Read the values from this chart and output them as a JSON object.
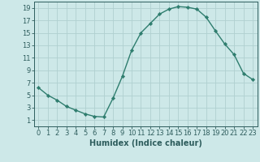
{
  "x": [
    0,
    1,
    2,
    3,
    4,
    5,
    6,
    7,
    8,
    9,
    10,
    11,
    12,
    13,
    14,
    15,
    16,
    17,
    18,
    19,
    20,
    21,
    22,
    23
  ],
  "y": [
    6.2,
    5.0,
    4.2,
    3.2,
    2.6,
    2.0,
    1.6,
    1.5,
    4.5,
    8.0,
    12.2,
    15.0,
    16.5,
    18.0,
    18.8,
    19.2,
    19.1,
    18.8,
    17.5,
    15.3,
    13.2,
    11.5,
    8.5,
    7.5
  ],
  "xlabel": "Humidex (Indice chaleur)",
  "line_color": "#2e7d6e",
  "marker_color": "#2e7d6e",
  "bg_color": "#cde8e8",
  "grid_color": "#b0d0d0",
  "xlim": [
    -0.5,
    23.5
  ],
  "ylim": [
    0,
    20
  ],
  "xticks": [
    0,
    1,
    2,
    3,
    4,
    5,
    6,
    7,
    8,
    9,
    10,
    11,
    12,
    13,
    14,
    15,
    16,
    17,
    18,
    19,
    20,
    21,
    22,
    23
  ],
  "yticks": [
    1,
    3,
    5,
    7,
    9,
    11,
    13,
    15,
    17,
    19
  ],
  "tick_label_color": "#2e5d5d",
  "xlabel_fontsize": 7,
  "tick_fontsize": 6
}
